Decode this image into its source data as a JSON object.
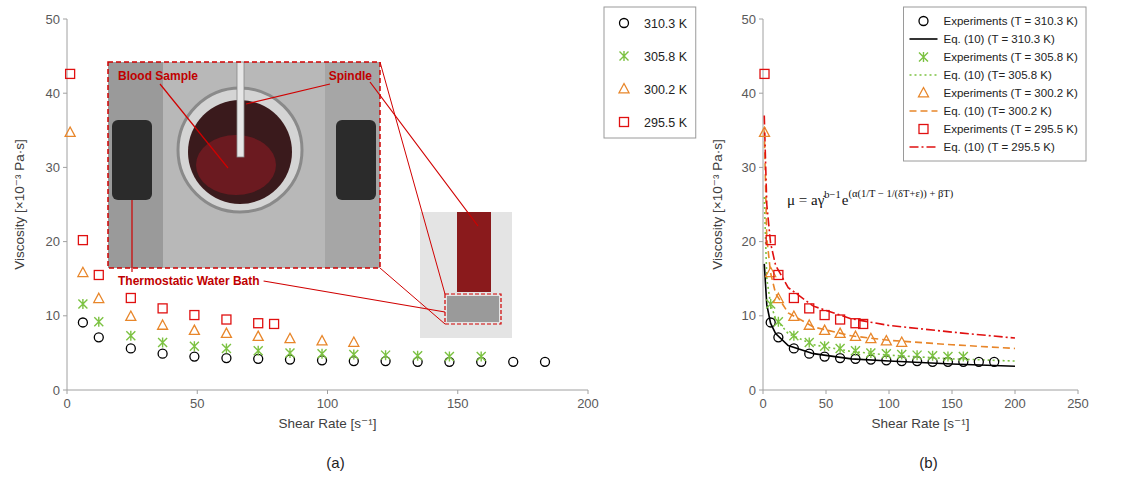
{
  "chart_data": [
    {
      "type": "scatter",
      "panel_label": "(a)",
      "x_label": "Shear Rate [s⁻¹]",
      "y_label": "Viscosity [×10⁻³ Pa·s]",
      "xlim": [
        0,
        200
      ],
      "xticks": [
        0,
        50,
        100,
        150,
        200
      ],
      "ylim": [
        0,
        50
      ],
      "yticks": [
        0,
        10,
        20,
        30,
        40,
        50
      ],
      "grid": false,
      "legend": "right",
      "annotations": [
        "Blood Sample",
        "Spindle",
        "Thermostatic Water Bath"
      ],
      "series": [
        {
          "name": "310.3 K",
          "color": "#000000",
          "marker": "circle",
          "x": [
            6.1,
            12.2,
            24.5,
            36.7,
            48.9,
            61.2,
            73.4,
            85.6,
            97.9,
            110.1,
            122.3,
            134.6,
            146.8,
            159.0,
            171.3,
            183.5
          ],
          "values": [
            9.1,
            7.1,
            5.6,
            4.9,
            4.5,
            4.3,
            4.2,
            4.1,
            4.0,
            3.9,
            3.9,
            3.8,
            3.8,
            3.8,
            3.8,
            3.8
          ]
        },
        {
          "name": "305.8 K",
          "color": "#7cc242",
          "marker": "asterisk",
          "x": [
            6.1,
            12.2,
            24.5,
            36.7,
            48.9,
            61.2,
            73.4,
            85.6,
            97.9,
            110.1,
            122.3,
            134.6,
            146.8,
            159.0
          ],
          "values": [
            11.6,
            9.2,
            7.3,
            6.4,
            5.9,
            5.6,
            5.3,
            5.0,
            4.9,
            4.8,
            4.7,
            4.6,
            4.5,
            4.5
          ]
        },
        {
          "name": "300.2 K",
          "color": "#e8862a",
          "marker": "triangle",
          "x": [
            1.2,
            6.1,
            12.2,
            24.5,
            36.7,
            48.9,
            61.2,
            73.4,
            85.6,
            97.9,
            110.1
          ],
          "values": [
            34.7,
            15.8,
            12.3,
            9.9,
            8.7,
            8.0,
            7.6,
            7.2,
            6.9,
            6.6,
            6.4
          ]
        },
        {
          "name": "295.5 K",
          "color": "#e01010",
          "marker": "square",
          "x": [
            1.2,
            6.1,
            12.2,
            24.5,
            36.7,
            48.9,
            61.2,
            73.4,
            79.5
          ],
          "values": [
            42.6,
            20.2,
            15.5,
            12.4,
            11.0,
            10.1,
            9.5,
            9.0,
            8.9
          ]
        }
      ]
    },
    {
      "type": "scatter",
      "panel_label": "(b)",
      "x_label": "Shear Rate [s⁻¹]",
      "y_label": "Viscosity [×10⁻³ Pa·s]",
      "xlim": [
        0,
        250
      ],
      "xticks": [
        0,
        50,
        100,
        150,
        200,
        250
      ],
      "ylim": [
        0,
        50
      ],
      "yticks": [
        0,
        10,
        20,
        30,
        40,
        50
      ],
      "grid": false,
      "legend": "top-right",
      "equation": {
        "lhs": "μ = aγ̇",
        "power": "b−1",
        "base": "e",
        "exponent": "(α(1/T − 1/(δT+ε)) + βT)"
      },
      "series": [
        {
          "name": "Experiments (T = 310.3 K)",
          "type": "scatter",
          "color": "#000000",
          "marker": "circle",
          "x": [
            6.1,
            12.2,
            24.5,
            36.7,
            48.9,
            61.2,
            73.4,
            85.6,
            97.9,
            110.1,
            122.3,
            134.6,
            146.8,
            159.0,
            171.3,
            183.5
          ],
          "values": [
            9.1,
            7.1,
            5.6,
            4.9,
            4.5,
            4.3,
            4.2,
            4.1,
            4.0,
            3.9,
            3.9,
            3.8,
            3.8,
            3.8,
            3.8,
            3.8
          ]
        },
        {
          "name": "Eq. (10) (T = 310.3 K)",
          "type": "line",
          "color": "#000000",
          "line_style": "solid",
          "x": [
            1,
            3,
            6,
            10,
            20,
            40,
            70,
            100,
            150,
            200
          ],
          "values": [
            17,
            11.5,
            9.0,
            7.6,
            6.0,
            4.9,
            4.2,
            3.9,
            3.5,
            3.2
          ]
        },
        {
          "name": "Experiments (T = 305.8 K)",
          "type": "scatter",
          "color": "#7cc242",
          "marker": "asterisk",
          "x": [
            6.1,
            12.2,
            24.5,
            36.7,
            48.9,
            61.2,
            73.4,
            85.6,
            97.9,
            110.1,
            122.3,
            134.6,
            146.8,
            159.0
          ],
          "values": [
            11.6,
            9.2,
            7.3,
            6.4,
            5.9,
            5.6,
            5.3,
            5.0,
            4.9,
            4.8,
            4.7,
            4.6,
            4.5,
            4.5
          ]
        },
        {
          "name": "Eq. (10) (T= 305.8 K)",
          "type": "line",
          "color": "#7cc242",
          "line_style": "dotted",
          "x": [
            1,
            3,
            6,
            10,
            20,
            40,
            70,
            100,
            150,
            200
          ],
          "values": [
            26,
            15,
            11.6,
            9.6,
            7.6,
            6.1,
            5.2,
            4.7,
            4.2,
            3.9
          ]
        },
        {
          "name": "Experiments (T = 300.2 K)",
          "type": "scatter",
          "color": "#e8862a",
          "marker": "triangle",
          "x": [
            1.2,
            6.1,
            12.2,
            24.5,
            36.7,
            48.9,
            61.2,
            73.4,
            85.6,
            97.9,
            110.1
          ],
          "values": [
            34.7,
            15.8,
            12.3,
            9.9,
            8.7,
            8.0,
            7.6,
            7.2,
            6.9,
            6.6,
            6.4
          ]
        },
        {
          "name": "Eq. (10) (T= 300.2 K)",
          "type": "line",
          "color": "#e8862a",
          "line_style": "dashed",
          "x": [
            1,
            3,
            6,
            10,
            20,
            40,
            70,
            100,
            150,
            200
          ],
          "values": [
            35,
            20.5,
            15.8,
            13.0,
            10.4,
            8.5,
            7.3,
            6.7,
            6.1,
            5.6
          ]
        },
        {
          "name": "Experiments (T = 295.5 K)",
          "type": "scatter",
          "color": "#e01010",
          "marker": "square",
          "x": [
            1.2,
            6.1,
            12.2,
            24.5,
            36.7,
            48.9,
            61.2,
            73.4,
            79.5
          ],
          "values": [
            42.6,
            20.2,
            15.5,
            12.4,
            11.0,
            10.1,
            9.5,
            9.0,
            8.9
          ]
        },
        {
          "name": "Eq. (10) (T = 295.5 K)",
          "type": "line",
          "color": "#e01010",
          "line_style": "dashdot",
          "x": [
            1,
            3,
            6,
            10,
            20,
            40,
            70,
            100,
            150,
            200
          ],
          "values": [
            37,
            25,
            19.8,
            16.8,
            13.8,
            11.3,
            9.6,
            8.7,
            7.8,
            7.0
          ]
        }
      ]
    }
  ]
}
